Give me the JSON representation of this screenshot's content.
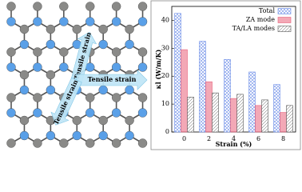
{
  "diagram": {
    "labels": [
      "Tensile strain",
      "Tensile strain",
      "Tensile strain"
    ]
  },
  "chart_data": {
    "type": "bar",
    "x_label": "Strain (%)",
    "y_label": "κl (W/m/K)",
    "categories": [
      "0",
      "2",
      "4",
      "6",
      "8"
    ],
    "series": [
      {
        "name": "Total",
        "color": "#6f8fe8",
        "values": [
          42.5,
          32.5,
          26,
          21.5,
          17
        ]
      },
      {
        "name": "ZA mode",
        "color": "#e8607a",
        "values": [
          29.5,
          18,
          12,
          9.5,
          7
        ]
      },
      {
        "name": "TA/LA modes",
        "color": "#555555",
        "values": [
          12.5,
          14,
          13.5,
          11.5,
          9.5
        ]
      }
    ],
    "ylim": [
      0,
      45
    ],
    "yticks": [
      0,
      10,
      20,
      30,
      40
    ],
    "legend": "upper right"
  }
}
